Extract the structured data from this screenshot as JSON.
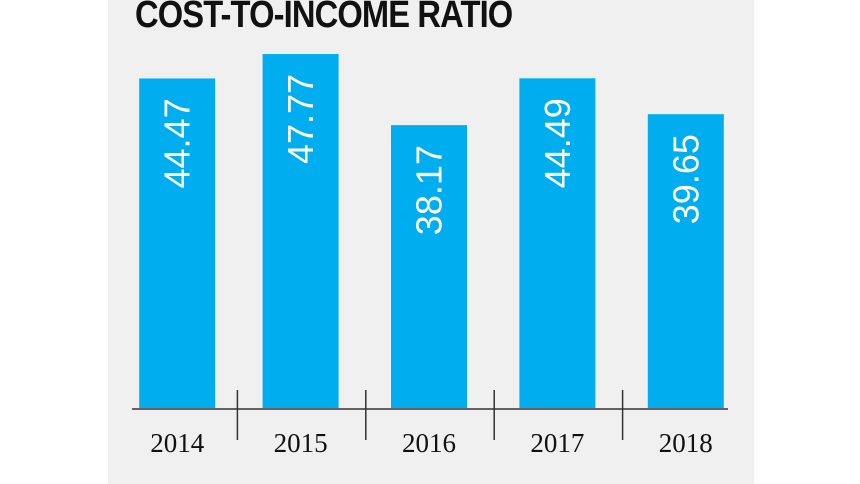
{
  "chart_data": {
    "type": "bar",
    "title": "COST-TO-INCOME RATIO",
    "categories": [
      "2014",
      "2015",
      "2016",
      "2017",
      "2018"
    ],
    "values": [
      44.47,
      47.77,
      38.17,
      44.49,
      39.65
    ],
    "value_labels": [
      "44.47",
      "47.77",
      "38.17",
      "44.49",
      "39.65"
    ],
    "xlabel": "",
    "ylabel": "",
    "ylim": [
      0,
      50
    ],
    "grid": false,
    "legend": "none",
    "colors": {
      "bar": "#00aeef",
      "background": "#f0f0f0",
      "axis": "#333333"
    }
  }
}
